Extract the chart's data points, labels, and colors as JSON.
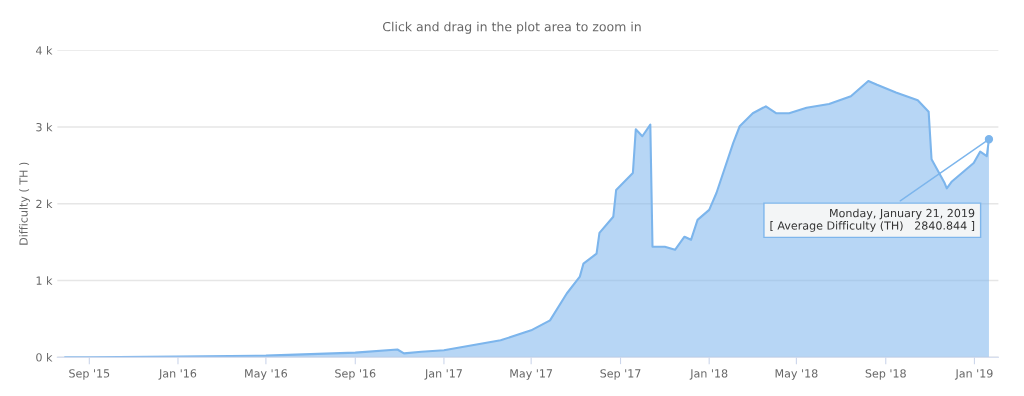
{
  "chart_data": {
    "type": "area",
    "subtitle": "Click and drag in the plot area to zoom in",
    "ylabel": "Difficulty ( TH )",
    "x": [
      "2015-07-30",
      "2015-09-01",
      "2016-01-01",
      "2016-05-01",
      "2016-09-01",
      "2016-10-29",
      "2016-11-07",
      "2016-12-01",
      "2017-01-01",
      "2017-03-20",
      "2017-05-01",
      "2017-05-27",
      "2017-06-19",
      "2017-07-07",
      "2017-07-12",
      "2017-07-30",
      "2017-08-03",
      "2017-08-22",
      "2017-08-26",
      "2017-09-18",
      "2017-09-22",
      "2017-10-01",
      "2017-10-12",
      "2017-10-15",
      "2017-11-01",
      "2017-11-15",
      "2017-11-28",
      "2017-12-07",
      "2017-12-16",
      "2018-01-01",
      "2018-01-11",
      "2018-02-03",
      "2018-02-12",
      "2018-03-02",
      "2018-03-20",
      "2018-04-03",
      "2018-04-21",
      "2018-05-15",
      "2018-06-15",
      "2018-07-15",
      "2018-08-08",
      "2018-08-20",
      "2018-09-15",
      "2018-10-15",
      "2018-10-30",
      "2018-11-03",
      "2018-11-21",
      "2018-11-24",
      "2018-12-01",
      "2018-12-31",
      "2019-01-09",
      "2019-01-18",
      "2019-01-21"
    ],
    "series": [
      {
        "color": "#7cb5ec",
        "values": [
          0,
          0,
          10,
          20,
          60,
          100,
          50,
          70,
          90,
          220,
          350,
          480,
          830,
          1050,
          1220,
          1350,
          1620,
          1830,
          2180,
          2400,
          2970,
          2880,
          3030,
          1440,
          1440,
          1400,
          1570,
          1530,
          1790,
          1920,
          2140,
          2790,
          3010,
          3180,
          3270,
          3180,
          3180,
          3250,
          3300,
          3400,
          3600,
          3550,
          3450,
          3350,
          3200,
          2580,
          2270,
          2200,
          2290,
          2530,
          2680,
          2620,
          2840.844
        ]
      }
    ],
    "xlim": [
      "2015-07-19",
      "2019-02-03"
    ],
    "xticks": [
      {
        "value": "2015-09-01",
        "label": "Sep '15"
      },
      {
        "value": "2016-01-01",
        "label": "Jan '16"
      },
      {
        "value": "2016-05-01",
        "label": "May '16"
      },
      {
        "value": "2016-09-01",
        "label": "Sep '16"
      },
      {
        "value": "2017-01-01",
        "label": "Jan '17"
      },
      {
        "value": "2017-05-01",
        "label": "May '17"
      },
      {
        "value": "2017-09-01",
        "label": "Sep '17"
      },
      {
        "value": "2018-01-01",
        "label": "Jan '18"
      },
      {
        "value": "2018-05-01",
        "label": "May '18"
      },
      {
        "value": "2018-09-01",
        "label": "Sep '18"
      },
      {
        "value": "2019-01-01",
        "label": "Jan '19"
      }
    ],
    "ylim": [
      0,
      4000
    ],
    "yticks": [
      {
        "value": 0,
        "label": "0 k"
      },
      {
        "value": 1000,
        "label": "1 k"
      },
      {
        "value": 2000,
        "label": "2 k"
      },
      {
        "value": 3000,
        "label": "3 k"
      },
      {
        "value": 4000,
        "label": "4 k"
      }
    ],
    "grid": "y",
    "annotations": [
      {
        "text": "Monday, January 21, 2019\n[ Average Difficulty (TH)   2840.844 ]",
        "x": "2019-01-21",
        "y": 2840.844
      }
    ]
  }
}
